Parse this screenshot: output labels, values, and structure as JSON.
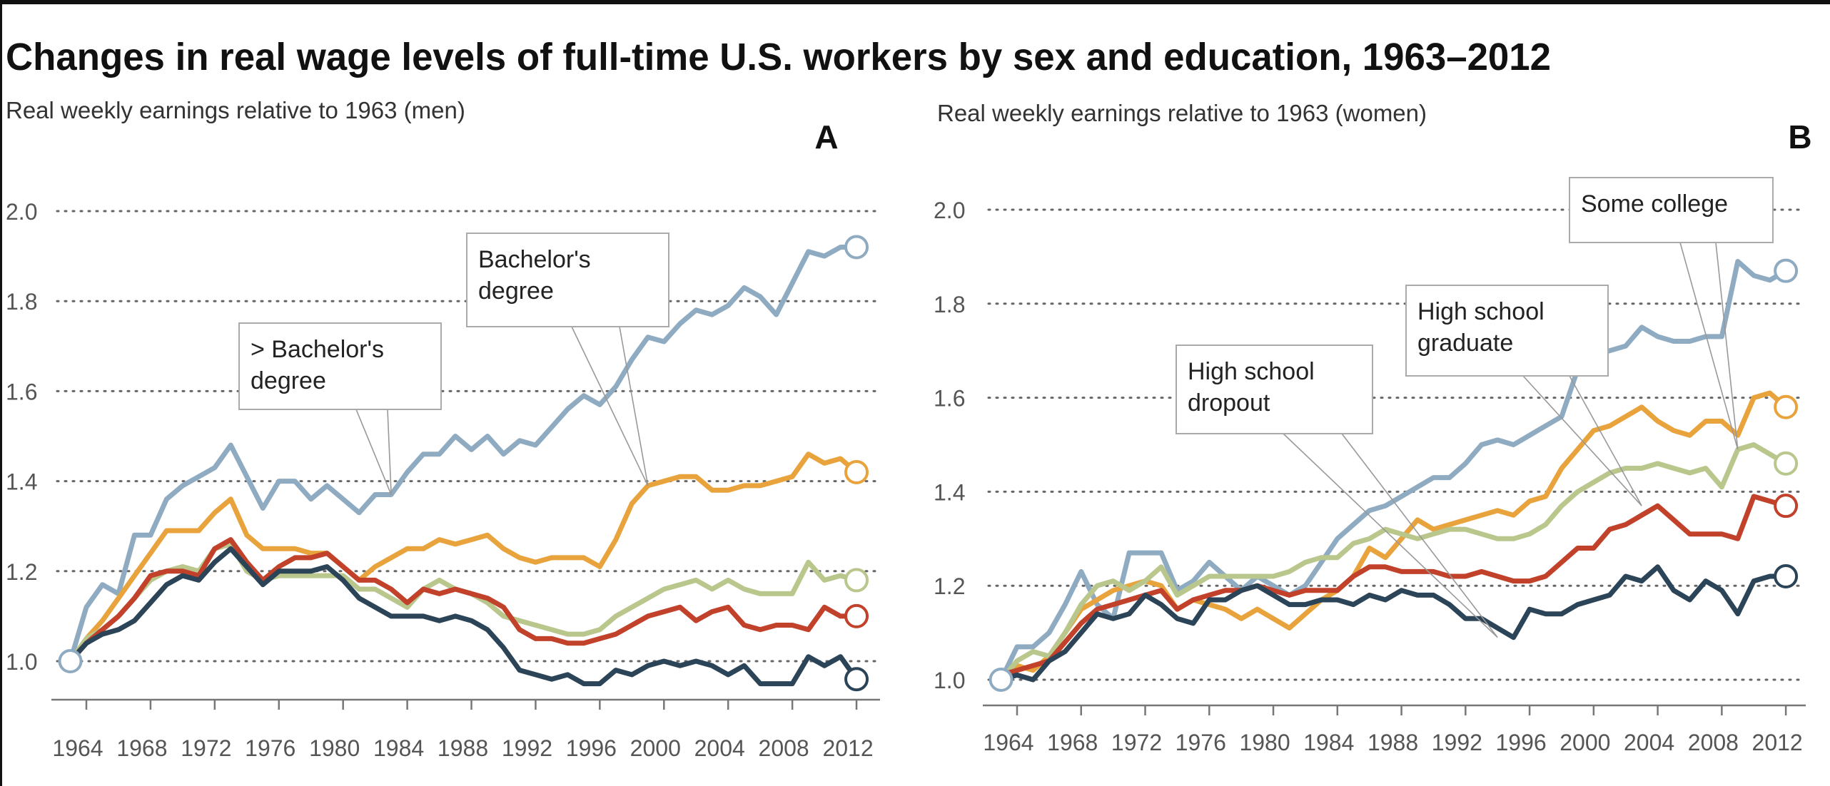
{
  "title": "Changes in real wage levels of full-time U.S. workers by sex and education, 1963–2012",
  "chart_data": [
    {
      "type": "line",
      "panel": "A",
      "title": "Real weekly earnings relative to 1963 (men)",
      "xlabel": "",
      "ylabel": "Real weekly earnings relative to 1963",
      "x_start": 1963,
      "x_end": 2012,
      "xticks": [
        "1964",
        "1968",
        "1972",
        "1976",
        "1980",
        "1984",
        "1988",
        "1992",
        "1996",
        "2000",
        "2004",
        "2008",
        "2012"
      ],
      "yticks": [
        "1.0",
        "1.2",
        "1.4",
        "1.6",
        "1.8",
        "2.0"
      ],
      "ylim": [
        0.9,
        2.0
      ],
      "grid": true,
      "series": [
        {
          "name": "> Bachelor's degree",
          "color": "#8fabc2",
          "values": [
            1.0,
            1.12,
            1.17,
            1.15,
            1.28,
            1.28,
            1.36,
            1.39,
            1.41,
            1.43,
            1.48,
            1.41,
            1.34,
            1.4,
            1.4,
            1.36,
            1.39,
            1.36,
            1.33,
            1.37,
            1.37,
            1.42,
            1.46,
            1.46,
            1.5,
            1.47,
            1.5,
            1.46,
            1.49,
            1.48,
            1.52,
            1.56,
            1.59,
            1.57,
            1.61,
            1.67,
            1.72,
            1.71,
            1.75,
            1.78,
            1.77,
            1.79,
            1.83,
            1.81,
            1.77,
            1.84,
            1.91,
            1.9,
            1.92,
            1.92
          ]
        },
        {
          "name": "Bachelor's degree",
          "color": "#e8a33d",
          "values": [
            1.0,
            1.05,
            1.09,
            1.14,
            1.19,
            1.24,
            1.29,
            1.29,
            1.29,
            1.33,
            1.36,
            1.28,
            1.25,
            1.25,
            1.25,
            1.24,
            1.24,
            1.21,
            1.18,
            1.21,
            1.23,
            1.25,
            1.25,
            1.27,
            1.26,
            1.27,
            1.28,
            1.25,
            1.23,
            1.22,
            1.23,
            1.23,
            1.23,
            1.21,
            1.27,
            1.35,
            1.39,
            1.4,
            1.41,
            1.41,
            1.38,
            1.38,
            1.39,
            1.39,
            1.4,
            1.41,
            1.46,
            1.44,
            1.45,
            1.42
          ]
        },
        {
          "name": "Some college",
          "color": "#b9c78c",
          "values": [
            1.0,
            1.05,
            1.07,
            1.1,
            1.14,
            1.18,
            1.2,
            1.21,
            1.2,
            1.25,
            1.26,
            1.2,
            1.18,
            1.19,
            1.19,
            1.19,
            1.19,
            1.19,
            1.16,
            1.16,
            1.14,
            1.12,
            1.16,
            1.18,
            1.16,
            1.15,
            1.13,
            1.1,
            1.09,
            1.08,
            1.07,
            1.06,
            1.06,
            1.07,
            1.1,
            1.12,
            1.14,
            1.16,
            1.17,
            1.18,
            1.16,
            1.18,
            1.16,
            1.15,
            1.15,
            1.15,
            1.22,
            1.18,
            1.19,
            1.18
          ]
        },
        {
          "name": "High school graduate",
          "color": "#c1412b",
          "values": [
            1.0,
            1.04,
            1.07,
            1.1,
            1.14,
            1.19,
            1.2,
            1.2,
            1.19,
            1.25,
            1.27,
            1.22,
            1.18,
            1.21,
            1.23,
            1.23,
            1.24,
            1.21,
            1.18,
            1.18,
            1.16,
            1.13,
            1.16,
            1.15,
            1.16,
            1.15,
            1.14,
            1.12,
            1.07,
            1.05,
            1.05,
            1.04,
            1.04,
            1.05,
            1.06,
            1.08,
            1.1,
            1.11,
            1.12,
            1.09,
            1.11,
            1.12,
            1.08,
            1.07,
            1.08,
            1.08,
            1.07,
            1.12,
            1.1,
            1.1
          ]
        },
        {
          "name": "High school dropout",
          "color": "#2b4457",
          "values": [
            1.0,
            1.04,
            1.06,
            1.07,
            1.09,
            1.13,
            1.17,
            1.19,
            1.18,
            1.22,
            1.25,
            1.21,
            1.17,
            1.2,
            1.2,
            1.2,
            1.21,
            1.18,
            1.14,
            1.12,
            1.1,
            1.1,
            1.1,
            1.09,
            1.1,
            1.09,
            1.07,
            1.03,
            0.98,
            0.97,
            0.96,
            0.97,
            0.95,
            0.95,
            0.98,
            0.97,
            0.99,
            1.0,
            0.99,
            1.0,
            0.99,
            0.97,
            0.99,
            0.95,
            0.95,
            0.95,
            1.01,
            0.99,
            1.01,
            0.96
          ]
        }
      ],
      "annotations": [
        {
          "lines": [
            "> Bachelor's",
            "degree"
          ],
          "year": 1983,
          "value": 1.37
        },
        {
          "lines": [
            "Bachelor's",
            "degree"
          ],
          "year": 1999,
          "value": 1.39
        }
      ]
    },
    {
      "type": "line",
      "panel": "B",
      "title": "Real weekly earnings relative to 1963 (women)",
      "xlabel": "",
      "ylabel": "Real weekly earnings relative to 1963",
      "x_start": 1963,
      "x_end": 2012,
      "xticks": [
        "1964",
        "1968",
        "1972",
        "1976",
        "1980",
        "1984",
        "1988",
        "1992",
        "1996",
        "2000",
        "2004",
        "2008",
        "2012"
      ],
      "yticks": [
        "1.0",
        "1.2",
        "1.4",
        "1.6",
        "1.8",
        "2.0"
      ],
      "ylim": [
        0.95,
        2.0
      ],
      "grid": true,
      "series": [
        {
          "name": "> Bachelor's degree",
          "color": "#8fabc2",
          "values": [
            1.0,
            1.07,
            1.07,
            1.1,
            1.16,
            1.23,
            1.16,
            1.13,
            1.27,
            1.27,
            1.27,
            1.19,
            1.21,
            1.25,
            1.22,
            1.19,
            1.22,
            1.2,
            1.18,
            1.2,
            1.25,
            1.3,
            1.33,
            1.36,
            1.37,
            1.39,
            1.41,
            1.43,
            1.43,
            1.46,
            1.5,
            1.51,
            1.5,
            1.52,
            1.54,
            1.56,
            1.66,
            1.69,
            1.7,
            1.71,
            1.75,
            1.73,
            1.72,
            1.72,
            1.73,
            1.73,
            1.89,
            1.86,
            1.85,
            1.87
          ]
        },
        {
          "name": "Bachelor's degree",
          "color": "#e8a33d",
          "values": [
            0.99,
            1.03,
            1.02,
            1.05,
            1.1,
            1.15,
            1.17,
            1.19,
            1.2,
            1.21,
            1.2,
            1.15,
            1.17,
            1.16,
            1.15,
            1.13,
            1.15,
            1.13,
            1.11,
            1.14,
            1.17,
            1.19,
            1.22,
            1.28,
            1.26,
            1.3,
            1.34,
            1.32,
            1.33,
            1.34,
            1.35,
            1.36,
            1.35,
            1.38,
            1.39,
            1.45,
            1.49,
            1.53,
            1.54,
            1.56,
            1.58,
            1.55,
            1.53,
            1.52,
            1.55,
            1.55,
            1.52,
            1.6,
            1.61,
            1.58
          ]
        },
        {
          "name": "Some college",
          "color": "#b9c78c",
          "values": [
            1.0,
            1.04,
            1.06,
            1.05,
            1.1,
            1.16,
            1.2,
            1.21,
            1.19,
            1.21,
            1.24,
            1.18,
            1.2,
            1.22,
            1.22,
            1.22,
            1.22,
            1.22,
            1.23,
            1.25,
            1.26,
            1.26,
            1.29,
            1.3,
            1.32,
            1.31,
            1.3,
            1.31,
            1.32,
            1.32,
            1.31,
            1.3,
            1.3,
            1.31,
            1.33,
            1.37,
            1.4,
            1.42,
            1.44,
            1.45,
            1.45,
            1.46,
            1.45,
            1.44,
            1.45,
            1.41,
            1.49,
            1.5,
            1.48,
            1.46
          ]
        },
        {
          "name": "High school graduate",
          "color": "#c1412b",
          "values": [
            1.01,
            1.02,
            1.03,
            1.04,
            1.08,
            1.12,
            1.15,
            1.16,
            1.17,
            1.18,
            1.19,
            1.15,
            1.17,
            1.18,
            1.19,
            1.19,
            1.2,
            1.19,
            1.18,
            1.19,
            1.19,
            1.19,
            1.22,
            1.24,
            1.24,
            1.23,
            1.23,
            1.23,
            1.22,
            1.22,
            1.23,
            1.22,
            1.21,
            1.21,
            1.22,
            1.25,
            1.28,
            1.28,
            1.32,
            1.33,
            1.35,
            1.37,
            1.34,
            1.31,
            1.31,
            1.31,
            1.3,
            1.39,
            1.38,
            1.37
          ]
        },
        {
          "name": "High school dropout",
          "color": "#2b4457",
          "values": [
            1.0,
            1.01,
            1.0,
            1.04,
            1.06,
            1.1,
            1.14,
            1.13,
            1.14,
            1.18,
            1.16,
            1.13,
            1.12,
            1.17,
            1.17,
            1.19,
            1.2,
            1.18,
            1.16,
            1.16,
            1.17,
            1.17,
            1.16,
            1.18,
            1.17,
            1.19,
            1.18,
            1.18,
            1.16,
            1.13,
            1.13,
            1.11,
            1.09,
            1.15,
            1.14,
            1.14,
            1.16,
            1.17,
            1.18,
            1.22,
            1.21,
            1.24,
            1.19,
            1.17,
            1.21,
            1.19,
            1.14,
            1.21,
            1.22,
            1.22
          ]
        }
      ],
      "annotations": [
        {
          "lines": [
            "High school",
            "dropout"
          ],
          "year": 1994,
          "value": 1.09
        },
        {
          "lines": [
            "High school",
            "graduate"
          ],
          "year": 2003,
          "value": 1.37
        },
        {
          "lines": [
            "Some college"
          ],
          "year": 2009,
          "value": 1.49
        }
      ]
    }
  ]
}
